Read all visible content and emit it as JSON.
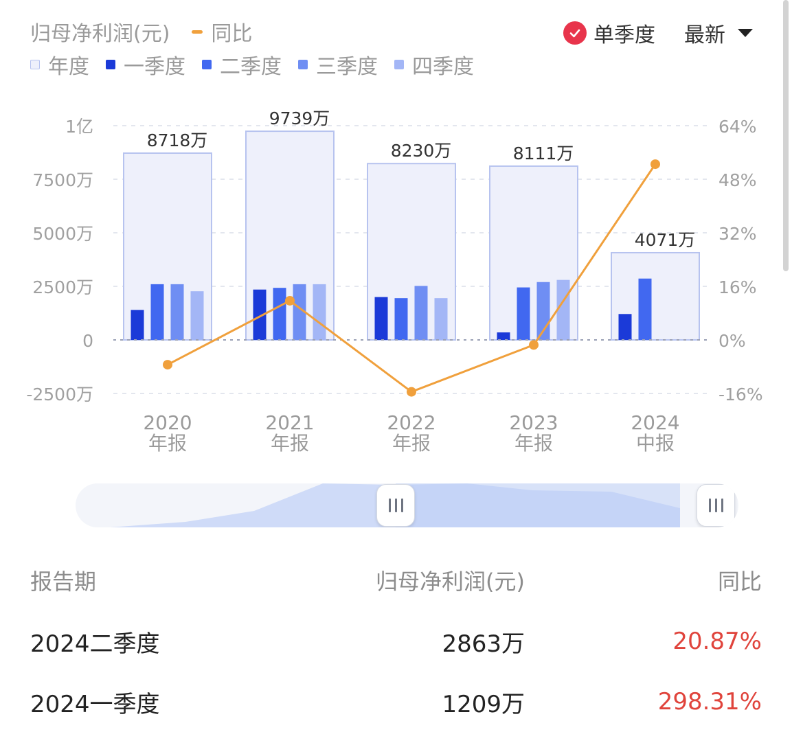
{
  "header": {
    "metric_title": "归母净利润(元)",
    "yoy_legend": "同比",
    "single_quarter_label": "单季度",
    "period_dropdown": "最新"
  },
  "legend": [
    {
      "label": "年度",
      "color": "#eef0fb",
      "border": "#b7c3ef"
    },
    {
      "label": "一季度",
      "color": "#1b3ad8"
    },
    {
      "label": "二季度",
      "color": "#4168f0"
    },
    {
      "label": "三季度",
      "color": "#6f8ef3"
    },
    {
      "label": "四季度",
      "color": "#a3b6f6"
    }
  ],
  "chart_data": {
    "type": "bar",
    "categories": [
      {
        "year": "2020",
        "kind": "年报"
      },
      {
        "year": "2021",
        "kind": "年报"
      },
      {
        "year": "2022",
        "kind": "年报"
      },
      {
        "year": "2023",
        "kind": "年报"
      },
      {
        "year": "2024",
        "kind": "中报"
      }
    ],
    "annual": {
      "values": [
        8718,
        9739,
        8230,
        8111,
        4071
      ],
      "labels": [
        "8718万",
        "9739万",
        "8230万",
        "8111万",
        "4071万"
      ],
      "color": "#eef0fb",
      "border": "#b7c3ef"
    },
    "series": [
      {
        "name": "一季度",
        "values": [
          1400,
          2350,
          2000,
          350,
          1209
        ],
        "color": "#1b3ad8"
      },
      {
        "name": "二季度",
        "values": [
          2600,
          2430,
          1950,
          2450,
          2863
        ],
        "color": "#4168f0"
      },
      {
        "name": "三季度",
        "values": [
          2600,
          2600,
          2520,
          2700,
          null
        ],
        "color": "#6f8ef3"
      },
      {
        "name": "四季度",
        "values": [
          2270,
          2600,
          1950,
          2800,
          null
        ],
        "color": "#a3b6f6"
      }
    ],
    "yoy_line": {
      "name": "同比",
      "values": [
        -7.4,
        11.7,
        -15.5,
        -1.5,
        52.5
      ],
      "color": "#f0a03c"
    },
    "left_axis": {
      "ylim": [
        -2500,
        10000
      ],
      "ticks": [
        10000,
        7500,
        5000,
        2500,
        0,
        -2500
      ],
      "tick_labels": [
        "1亿",
        "7500万",
        "5000万",
        "2500万",
        "0",
        "-2500万"
      ]
    },
    "right_axis": {
      "ylim": [
        -16,
        64
      ],
      "ticks": [
        64,
        48,
        32,
        16,
        0,
        -16
      ],
      "tick_labels": [
        "64%",
        "48%",
        "32%",
        "16%",
        "0%",
        "-16%"
      ]
    },
    "grid": true
  },
  "table": {
    "headers": [
      "报告期",
      "归母净利润(元)",
      "同比"
    ],
    "rows": [
      {
        "period": "2024二季度",
        "value": "2863万",
        "yoy": "20.87%"
      },
      {
        "period": "2024一季度",
        "value": "1209万",
        "yoy": "298.31%"
      }
    ]
  }
}
